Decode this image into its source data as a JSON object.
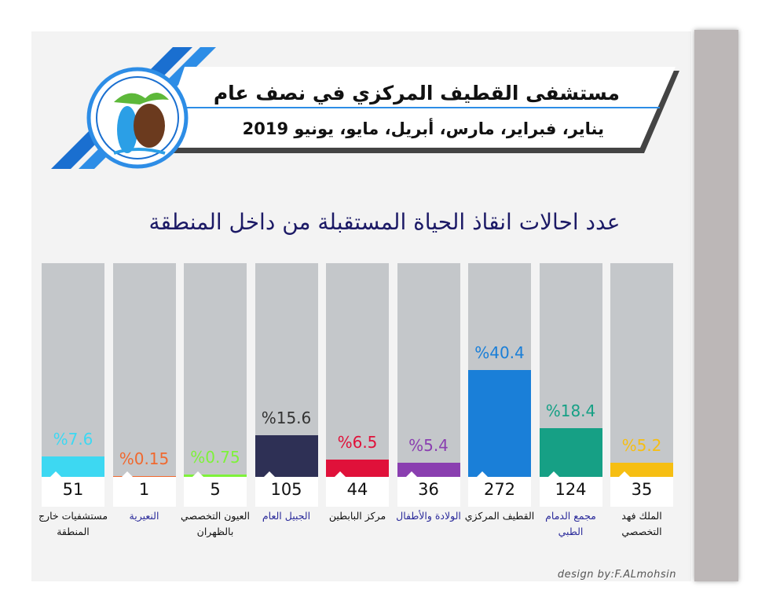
{
  "header": {
    "title": "مستشفى القطيف المركزي في نصف عام",
    "subtitle": "يناير، فبراير، مارس، أبريل، مايو، يونيو 2019"
  },
  "chart_data": {
    "type": "bar",
    "title": "عدد احالات انقاذ الحياة المستقبلة من داخل المنطقة",
    "categories": [
      "مستشفيات خارج المنطقة",
      "النعيرية",
      "العيون التخصصي بالظهران",
      "الجبيل العام",
      "مركز البابطين",
      "الولادة والأطفال",
      "القطيف المركزي",
      "مجمع الدمام الطبي",
      "الملك فهد التخصصي"
    ],
    "values": [
      7.6,
      0.15,
      0.75,
      15.6,
      6.5,
      5.4,
      40.4,
      18.4,
      5.2
    ],
    "value_labels": [
      "%7.6",
      "%0.15",
      "%0.75",
      "%15.6",
      "%6.5",
      "%5.4",
      "%40.4",
      "%18.4",
      "%5.2"
    ],
    "counts": [
      51,
      1,
      5,
      105,
      44,
      36,
      272,
      124,
      35
    ],
    "colors": [
      "#3dd8f2",
      "#f0692f",
      "#7ef23a",
      "#2e3055",
      "#e0113a",
      "#8a3fb0",
      "#1a7fd8",
      "#16a085",
      "#f6be12"
    ]
  },
  "credit": "design by:F.ALmohsin"
}
